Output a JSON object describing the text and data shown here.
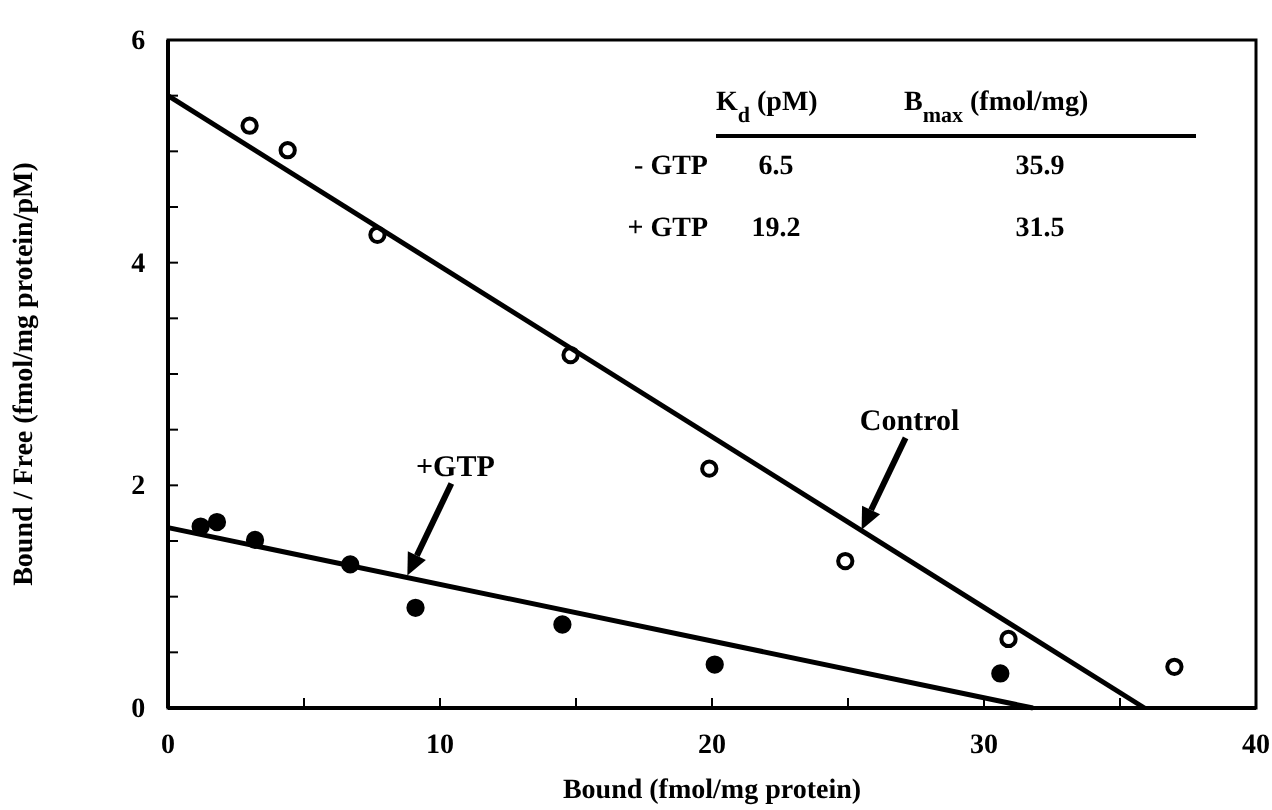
{
  "chart_data": {
    "type": "scatter",
    "xlabel": "Bound (fmol/mg protein)",
    "ylabel": "Bound / Free (fmol/mg protein/pM)",
    "xlim": [
      0,
      40
    ],
    "ylim": [
      0,
      6
    ],
    "xticks": [
      0,
      {
        "value": 5,
        "label": null
      },
      10,
      {
        "value": 15,
        "label": null
      },
      20,
      {
        "value": 25,
        "label": null
      },
      30,
      {
        "value": 35,
        "label": null
      },
      40
    ],
    "yticks": [
      0,
      {
        "value": 0.5,
        "label": null
      },
      {
        "value": 1,
        "label": null
      },
      {
        "value": 1.5,
        "label": null
      },
      2,
      {
        "value": 2.5,
        "label": null
      },
      {
        "value": 3,
        "label": null
      },
      {
        "value": 3.5,
        "label": null
      },
      4,
      {
        "value": 4.5,
        "label": null
      },
      {
        "value": 5,
        "label": null
      },
      {
        "value": 5.5,
        "label": null
      },
      6
    ],
    "grid": false,
    "series": [
      {
        "marker": "circle",
        "color": "#ffffff",
        "x": [
          3.0,
          4.4,
          7.7,
          14.8,
          19.9,
          24.9,
          30.9,
          37.0
        ],
        "values": [
          5.23,
          5.01,
          4.25,
          3.17,
          2.15,
          1.32,
          0.62,
          0.37
        ]
      },
      {
        "marker": "circle",
        "color": "#000000",
        "x": [
          1.2,
          1.8,
          3.2,
          6.7,
          9.1,
          14.5,
          20.1,
          30.6
        ],
        "values": [
          1.63,
          1.67,
          1.51,
          1.29,
          0.9,
          0.75,
          0.39,
          0.31
        ]
      },
      {
        "type": "line",
        "color": "#000000",
        "x": [
          0,
          35.9
        ],
        "values": [
          5.5,
          0
        ]
      },
      {
        "type": "line",
        "color": "#000000",
        "x": [
          0,
          31.8
        ],
        "values": [
          1.62,
          0
        ]
      }
    ],
    "annotations": [
      "K$_{d}$ (pM)",
      "B$_{max}$ (fmol/mg)",
      "- GTP",
      "6.5",
      "35.9",
      "+ GTP",
      "19.2",
      "31.5",
      "Control",
      "+GTP"
    ]
  }
}
